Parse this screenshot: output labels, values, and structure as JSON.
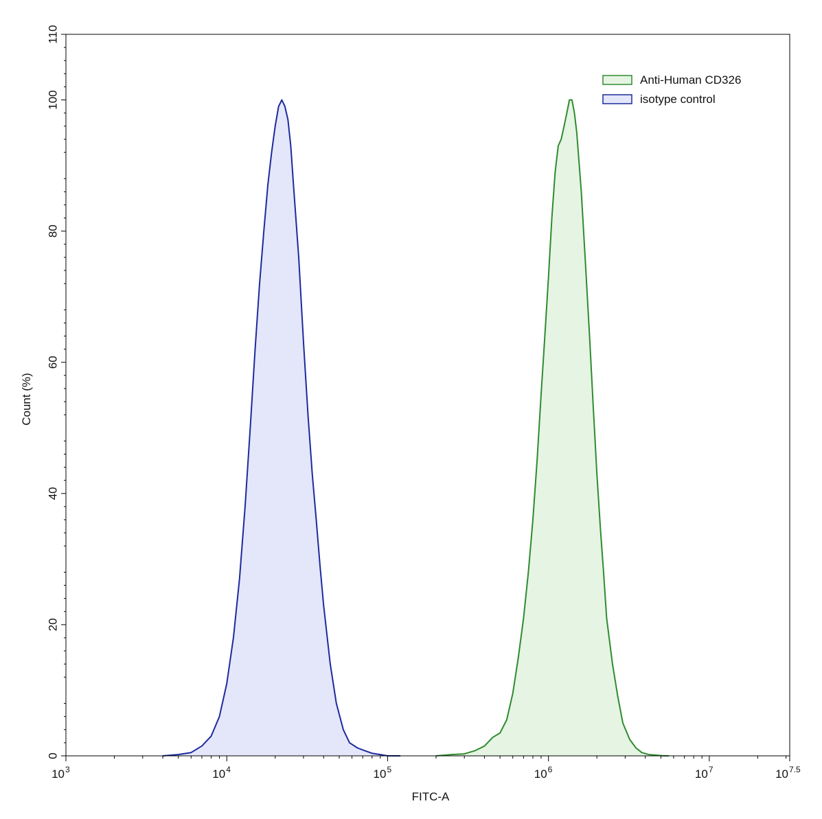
{
  "chart_data": {
    "type": "area",
    "title": "",
    "xlabel": "FITC-A",
    "ylabel": "Count  (%)",
    "x_scale": "log10",
    "xlim": [
      1000,
      31622776.6
    ],
    "ylim": [
      0,
      110
    ],
    "x_ticks": [
      {
        "value": 1000,
        "base": "10",
        "exp": "3"
      },
      {
        "value": 10000,
        "base": "10",
        "exp": "4"
      },
      {
        "value": 100000,
        "base": "10",
        "exp": "5"
      },
      {
        "value": 1000000,
        "base": "10",
        "exp": "6"
      },
      {
        "value": 10000000,
        "base": "10",
        "exp": "7"
      },
      {
        "value": 31622776.6,
        "base": "10",
        "exp": "7.5"
      }
    ],
    "y_ticks": [
      {
        "value": 0,
        "label": "0"
      },
      {
        "value": 20,
        "label": "20"
      },
      {
        "value": 40,
        "label": "40"
      },
      {
        "value": 60,
        "label": "60"
      },
      {
        "value": 80,
        "label": "80"
      },
      {
        "value": 100,
        "label": "100"
      },
      {
        "value": 110,
        "label": "110"
      }
    ],
    "grid": false,
    "legend_position": "top-right",
    "series": [
      {
        "name": "Anti-Human CD326",
        "color": "#2e8b2e",
        "fill": "#e6f4e4",
        "x": [
          200000,
          250000,
          300000,
          350000,
          400000,
          450000,
          500000,
          550000,
          600000,
          650000,
          700000,
          750000,
          800000,
          850000,
          900000,
          950000,
          1000000,
          1050000,
          1100000,
          1150000,
          1200000,
          1250000,
          1300000,
          1350000,
          1400000,
          1450000,
          1500000,
          1600000,
          1700000,
          1800000,
          1900000,
          2000000,
          2100000,
          2200000,
          2300000,
          2500000,
          2700000,
          2900000,
          3200000,
          3500000,
          3800000,
          4200000,
          4700000,
          5200000,
          5600000
        ],
        "y": [
          0,
          0.2,
          0.3,
          0.8,
          1.5,
          2.8,
          3.5,
          5.5,
          9.5,
          15,
          21,
          28,
          36,
          45,
          55,
          64,
          73,
          82,
          89,
          93,
          94,
          96,
          98,
          100,
          100,
          98,
          95,
          86,
          75,
          64,
          53,
          43,
          35,
          28,
          21,
          14,
          9,
          5,
          2.5,
          1.2,
          0.5,
          0.2,
          0.1,
          0,
          0
        ]
      },
      {
        "name": "isotype control",
        "color": "#1c2a9c",
        "fill": "#e4e6fa",
        "x": [
          4000,
          5000,
          6000,
          7000,
          8000,
          9000,
          10000,
          11000,
          12000,
          13000,
          14000,
          15000,
          16000,
          17000,
          18000,
          19000,
          20000,
          21000,
          22000,
          23000,
          24000,
          25000,
          26000,
          28000,
          30000,
          32000,
          34000,
          36000,
          38000,
          40000,
          44000,
          48000,
          53000,
          58000,
          65000,
          72000,
          80000,
          90000,
          100000,
          120000
        ],
        "y": [
          0,
          0.2,
          0.5,
          1.5,
          3,
          6,
          11,
          18,
          27,
          38,
          50,
          62,
          72,
          80,
          87,
          92,
          96,
          99,
          100,
          99,
          97,
          93,
          87,
          76,
          63,
          52,
          43,
          36,
          29,
          23,
          14,
          8,
          4,
          2,
          1.2,
          0.8,
          0.4,
          0.2,
          0,
          0
        ]
      }
    ]
  }
}
